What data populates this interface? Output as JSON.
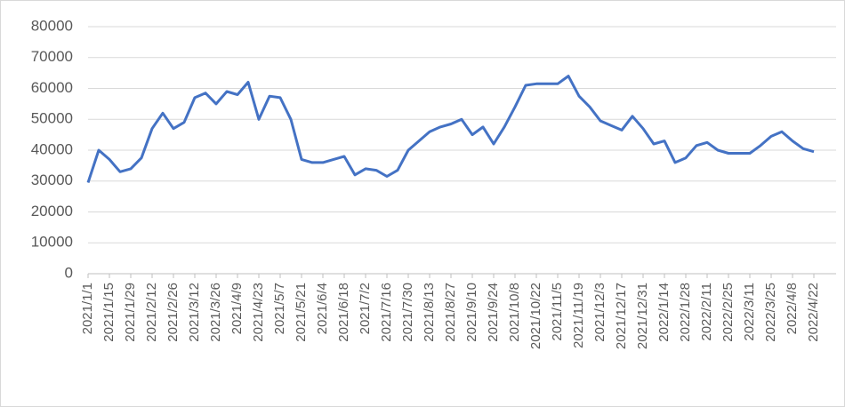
{
  "chart_data": {
    "type": "line",
    "categories": [
      "2021/1/1",
      null,
      "2021/1/15",
      null,
      "2021/1/29",
      null,
      "2021/2/12",
      null,
      "2021/2/26",
      null,
      "2021/3/12",
      null,
      "2021/3/26",
      null,
      "2021/4/9",
      null,
      "2021/4/23",
      null,
      "2021/5/7",
      null,
      "2021/5/21",
      null,
      "2021/6/4",
      null,
      "2021/6/18",
      null,
      "2021/7/2",
      null,
      "2021/7/16",
      null,
      "2021/7/30",
      null,
      "2021/8/13",
      null,
      "2021/8/27",
      null,
      "2021/9/10",
      null,
      "2021/9/24",
      null,
      "2021/10/8",
      null,
      "2021/10/22",
      null,
      "2021/11/5",
      null,
      "2021/11/19",
      null,
      "2021/12/3",
      null,
      "2021/12/17",
      null,
      "2021/12/31",
      null,
      "2022/1/14",
      null,
      "2022/1/28",
      null,
      "2022/2/11",
      null,
      "2022/2/25",
      null,
      "2022/3/11",
      null,
      "2022/3/25",
      null,
      "2022/4/8",
      null,
      "2022/4/22"
    ],
    "series": [
      {
        "color": "#4472c4",
        "values": [
          29500,
          40000,
          37000,
          33000,
          34000,
          37500,
          47000,
          52000,
          47000,
          49000,
          57000,
          58500,
          55000,
          59000,
          58000,
          62000,
          50000,
          57500,
          57000,
          50000,
          37000,
          36000,
          36000,
          37000,
          38000,
          32000,
          34000,
          33500,
          31500,
          33500,
          40000,
          43000,
          46000,
          47500,
          48500,
          50000,
          45000,
          47500,
          42000,
          47500,
          54000,
          61000,
          61500,
          61500,
          61500,
          64000,
          57500,
          54000,
          49500,
          48000,
          46500,
          51000,
          47000,
          42000,
          43000,
          36000,
          37500,
          41500,
          42500,
          40000,
          39000,
          39000,
          39000,
          41500,
          44500,
          46000,
          43000,
          40500,
          39500
        ]
      }
    ],
    "ylim": [
      0,
      80000
    ],
    "yticks": [
      0,
      10000,
      20000,
      30000,
      40000,
      50000,
      60000,
      70000,
      80000
    ],
    "grid": true
  }
}
